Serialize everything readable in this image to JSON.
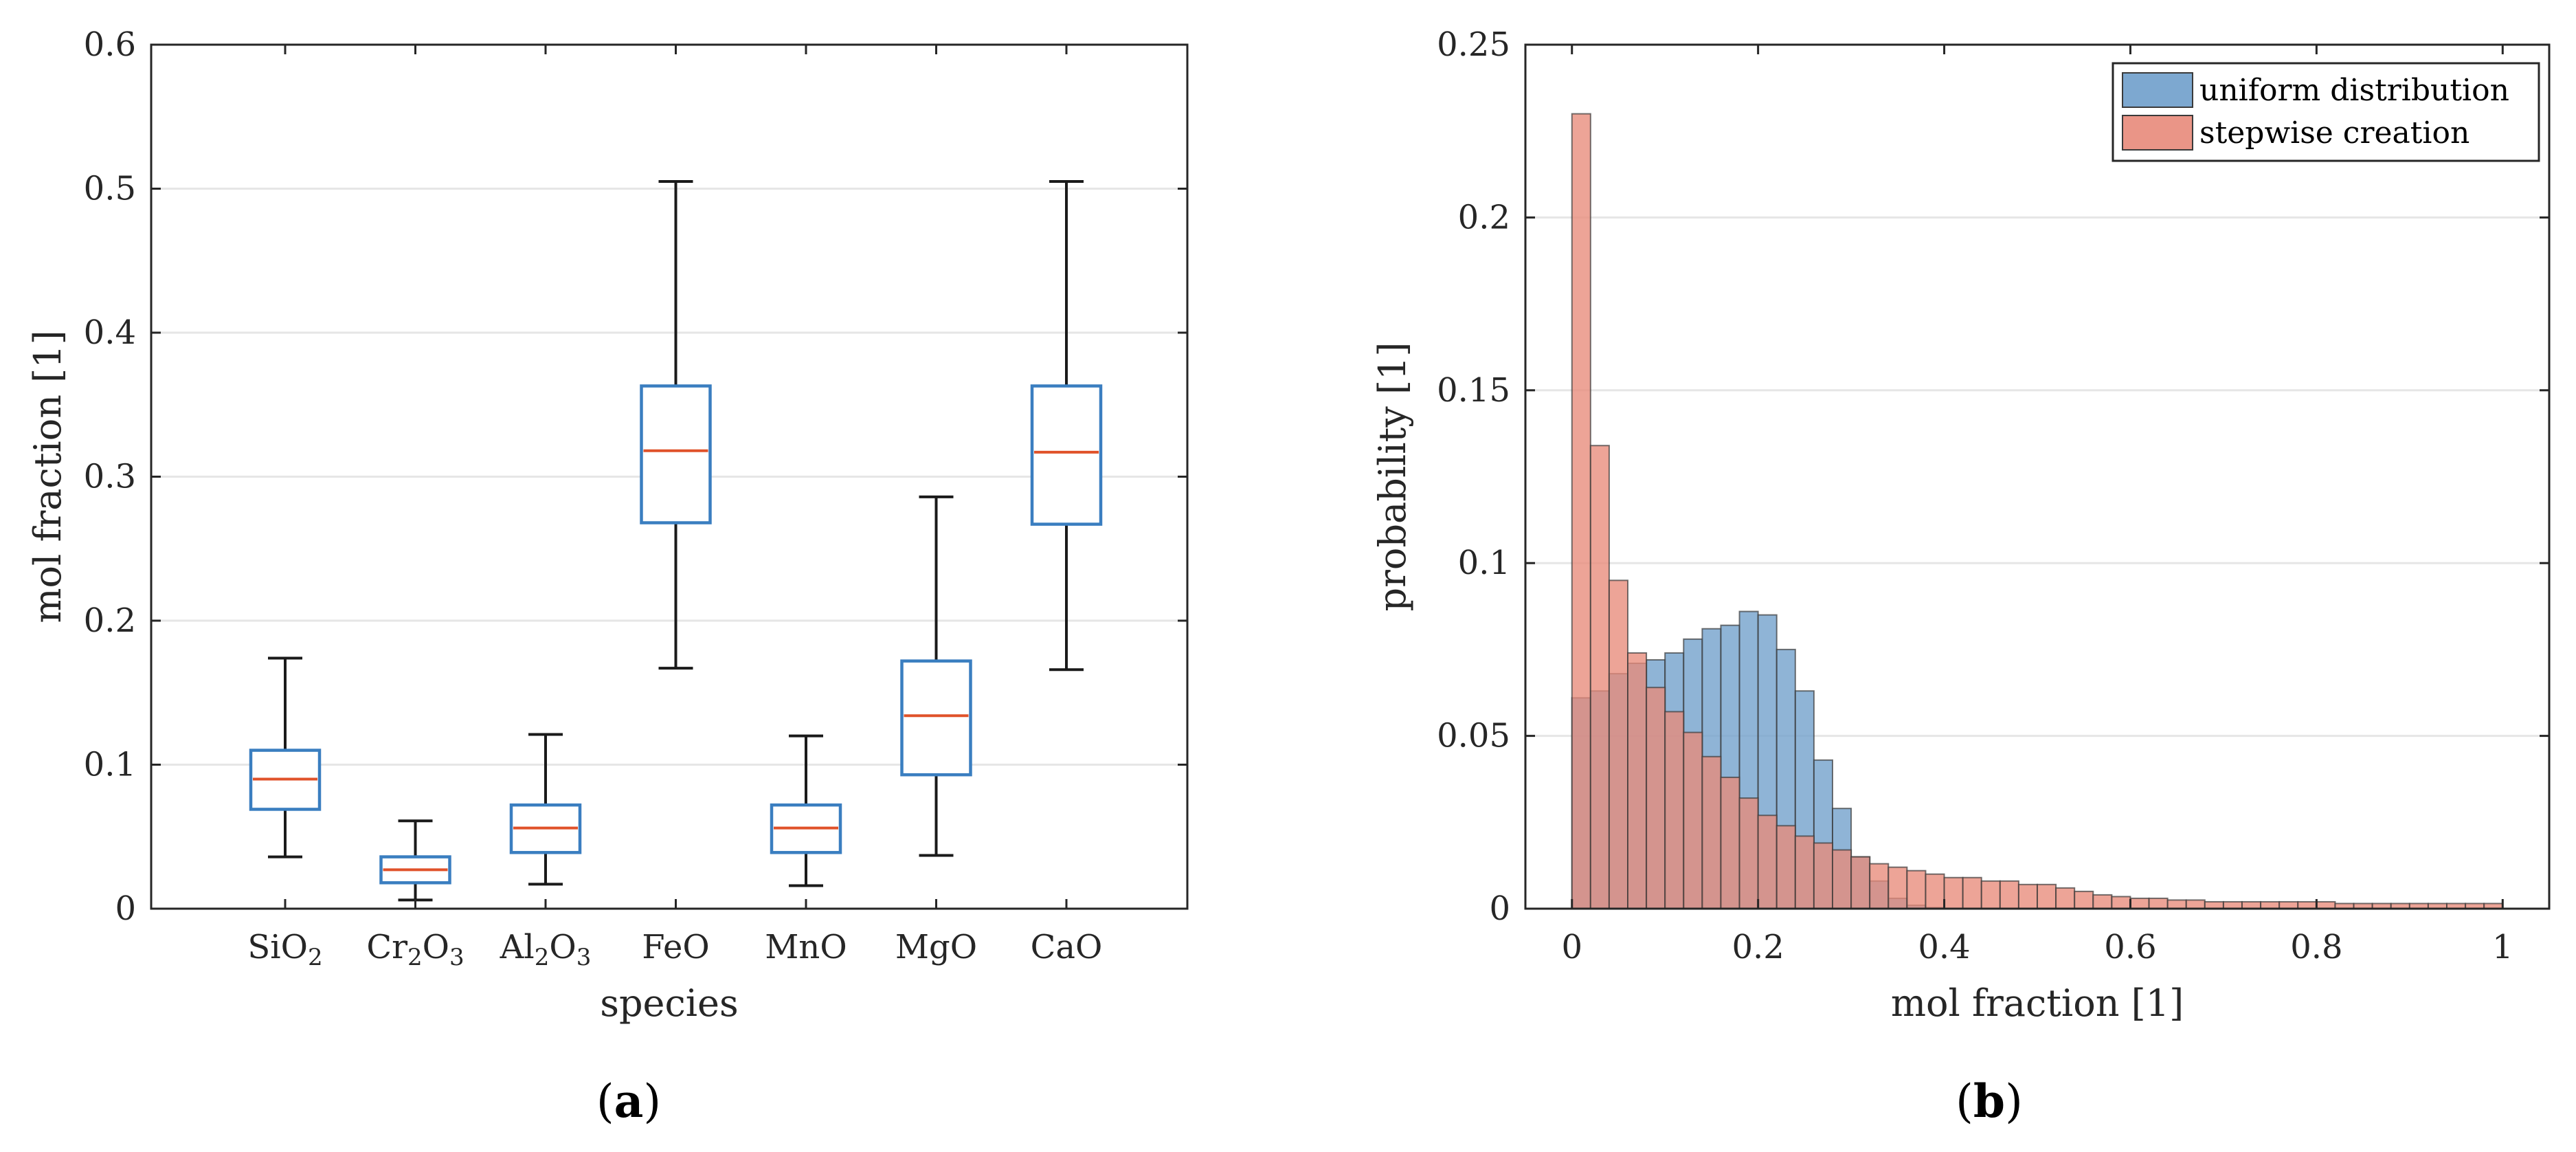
{
  "chart_data": [
    {
      "type": "box",
      "panel_label": "a",
      "xlabel": "species",
      "ylabel": "mol fraction [1]",
      "ylim": [
        0,
        0.6
      ],
      "yticks": [
        "0",
        "0.1",
        "0.2",
        "0.3",
        "0.4",
        "0.5",
        "0.6"
      ],
      "grid": "horizontal",
      "categories": [
        {
          "base": "SiO",
          "sub": "2",
          "tail": ""
        },
        {
          "base": "Cr",
          "sub": "2",
          "tail": "O",
          "sub2": "3"
        },
        {
          "base": "Al",
          "sub": "2",
          "tail": "O",
          "sub2": "3"
        },
        {
          "base": "FeO",
          "sub": "",
          "tail": ""
        },
        {
          "base": "MnO",
          "sub": "",
          "tail": ""
        },
        {
          "base": "MgO",
          "sub": "",
          "tail": ""
        },
        {
          "base": "CaO",
          "sub": "",
          "tail": ""
        }
      ],
      "boxes": [
        {
          "whisker_low": 0.036,
          "q1": 0.069,
          "median": 0.09,
          "q3": 0.11,
          "whisker_high": 0.174
        },
        {
          "whisker_low": 0.006,
          "q1": 0.018,
          "median": 0.027,
          "q3": 0.036,
          "whisker_high": 0.061
        },
        {
          "whisker_low": 0.017,
          "q1": 0.039,
          "median": 0.056,
          "q3": 0.072,
          "whisker_high": 0.121
        },
        {
          "whisker_low": 0.167,
          "q1": 0.268,
          "median": 0.318,
          "q3": 0.363,
          "whisker_high": 0.505
        },
        {
          "whisker_low": 0.016,
          "q1": 0.039,
          "median": 0.056,
          "q3": 0.072,
          "whisker_high": 0.12
        },
        {
          "whisker_low": 0.037,
          "q1": 0.093,
          "median": 0.134,
          "q3": 0.172,
          "whisker_high": 0.286
        },
        {
          "whisker_low": 0.166,
          "q1": 0.267,
          "median": 0.317,
          "q3": 0.363,
          "whisker_high": 0.505
        }
      ],
      "colors": {
        "box": "#3a7ec0",
        "median": "#e0522a",
        "whisker": "#1a1a1a"
      }
    },
    {
      "type": "histogram",
      "panel_label": "b",
      "xlabel": "mol fraction [1]",
      "ylabel": "probability [1]",
      "xlim": [
        -0.05,
        1.05
      ],
      "ylim": [
        0,
        0.25
      ],
      "xticks": [
        "0",
        "0.2",
        "0.4",
        "0.6",
        "0.8",
        "1"
      ],
      "xtick_values": [
        0,
        0.2,
        0.4,
        0.6,
        0.8,
        1
      ],
      "yticks": [
        "0",
        "0.05",
        "0.1",
        "0.15",
        "0.2",
        "0.25"
      ],
      "ytick_values": [
        0,
        0.05,
        0.1,
        0.15,
        0.2,
        0.25
      ],
      "grid": "horizontal",
      "bin_start": 0,
      "bin_width": 0.02,
      "legend_position": "top-right",
      "series": [
        {
          "name": "uniform distribution",
          "color": "#6f9fcb",
          "values": [
            0.061,
            0.063,
            0.068,
            0.071,
            0.072,
            0.074,
            0.078,
            0.081,
            0.082,
            0.086,
            0.085,
            0.075,
            0.063,
            0.043,
            0.029,
            0.015,
            0.008,
            0.003,
            0.001,
            0.0003,
            0.0001,
            0,
            0,
            0,
            0,
            0,
            0,
            0,
            0,
            0,
            0,
            0,
            0,
            0,
            0,
            0,
            0,
            0,
            0,
            0,
            0,
            0,
            0,
            0,
            0,
            0,
            0,
            0,
            0,
            0
          ]
        },
        {
          "name": "stepwise creation",
          "color": "#e88a7a",
          "values": [
            0.23,
            0.134,
            0.095,
            0.074,
            0.064,
            0.057,
            0.051,
            0.044,
            0.038,
            0.032,
            0.027,
            0.024,
            0.021,
            0.019,
            0.017,
            0.015,
            0.013,
            0.012,
            0.011,
            0.01,
            0.009,
            0.009,
            0.008,
            0.008,
            0.007,
            0.007,
            0.006,
            0.005,
            0.004,
            0.0035,
            0.003,
            0.003,
            0.0025,
            0.0025,
            0.002,
            0.002,
            0.002,
            0.002,
            0.002,
            0.002,
            0.002,
            0.0015,
            0.0015,
            0.0015,
            0.0015,
            0.0015,
            0.0015,
            0.0015,
            0.0015,
            0.0015
          ]
        }
      ]
    }
  ]
}
